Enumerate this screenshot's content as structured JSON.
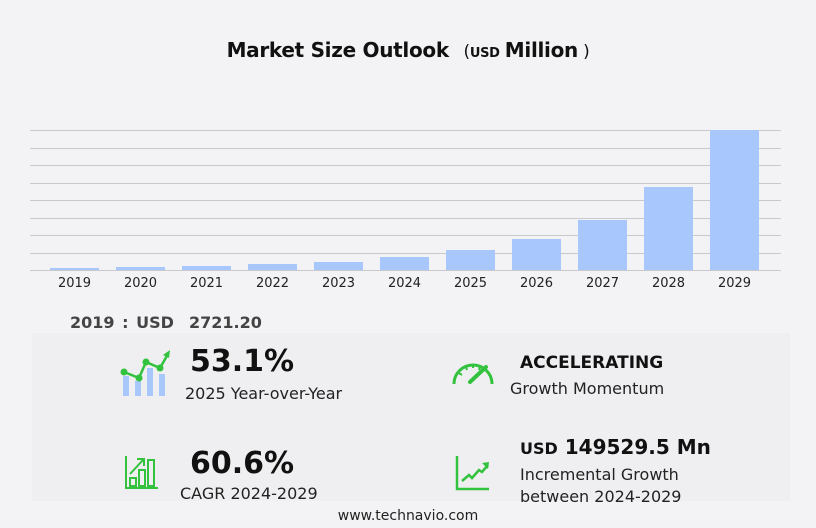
{
  "header": {
    "title": "Market Size Outlook",
    "unit_open": "(",
    "unit_currency": "USD",
    "unit_scale": "Million",
    "unit_close": ")"
  },
  "chart_data": {
    "type": "bar",
    "title": "Market Size Outlook (USD Million)",
    "xlabel": "",
    "ylabel": "",
    "categories": [
      "2019",
      "2020",
      "2021",
      "2022",
      "2023",
      "2024",
      "2025",
      "2026",
      "2027",
      "2028",
      "2029"
    ],
    "values": [
      2721.2,
      3900,
      5200,
      7200,
      9700,
      15300,
      23400,
      36600,
      58800,
      97600,
      164800
    ],
    "ylim": [
      0,
      164800
    ],
    "grid": true,
    "gridlines": 8,
    "bar_color": "#a8c8fd",
    "legend": "none"
  },
  "base_year": {
    "label": "2019 : USD",
    "value": "2721.20"
  },
  "stats": {
    "yoy": {
      "value": "53.1%",
      "label": "2025 Year-over-Year",
      "icon": "bar-line-growth-icon"
    },
    "momentum": {
      "value": "ACCELERATING",
      "label": "Growth Momentum",
      "icon": "speedometer-icon"
    },
    "cagr": {
      "value": "60.6%",
      "label": "CAGR 2024-2029",
      "icon": "bar-chart-arrow-icon"
    },
    "incremental": {
      "currency": "USD",
      "value": "149529.5 Mn",
      "label_line1": "Incremental Growth",
      "label_line2": "between 2024-2029",
      "icon": "trend-line-icon"
    }
  },
  "colors": {
    "accent_green": "#33c23d",
    "bar_blue": "#a8c8fd",
    "background": "#f3f3f5"
  },
  "footer": {
    "url": "www.technavio.com"
  }
}
